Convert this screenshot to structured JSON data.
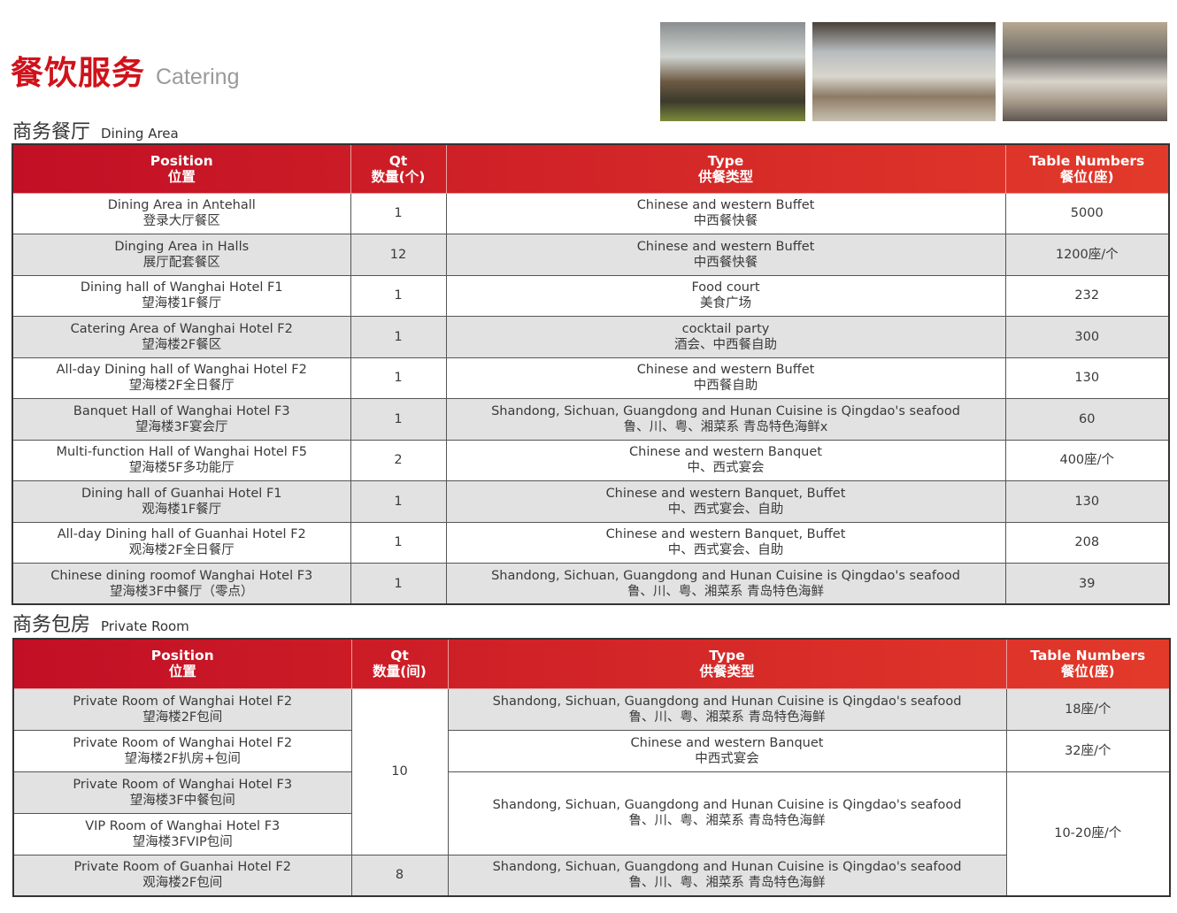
{
  "header": {
    "title_cn": "餐饮服务",
    "title_en": "Catering"
  },
  "photos": [
    "dining-photo",
    "hall-photo",
    "private-room-photo"
  ],
  "colors": {
    "accent": "#d0121b",
    "header_bg": "#c8102e",
    "row_alt": "#e2e2e2"
  },
  "dining": {
    "title_cn": "商务餐厅",
    "title_en": "Dining Area",
    "headers": [
      {
        "en": "Position",
        "cn": "位置"
      },
      {
        "en": "Qt",
        "cn": "数量(个)"
      },
      {
        "en": "Type",
        "cn": "供餐类型"
      },
      {
        "en": "Table Numbers",
        "cn": "餐位(座)"
      }
    ],
    "rows": [
      {
        "pos_en": "Dining Area in Antehall",
        "pos_cn": "登录大厅餐区",
        "qt": "1",
        "type_en": "Chinese and western Buffet",
        "type_cn": "中西餐快餐",
        "tables": "5000"
      },
      {
        "pos_en": "Dinging Area in Halls",
        "pos_cn": "展厅配套餐区",
        "qt": "12",
        "type_en": "Chinese and western Buffet",
        "type_cn": "中西餐快餐",
        "tables": "1200座/个"
      },
      {
        "pos_en": "Dining hall of Wanghai Hotel F1",
        "pos_cn": "望海楼1F餐厅",
        "qt": "1",
        "type_en": "Food court",
        "type_cn": "美食广场",
        "tables": "232"
      },
      {
        "pos_en": "Catering Area of Wanghai Hotel F2",
        "pos_cn": "望海楼2F餐区",
        "qt": "1",
        "type_en": "cocktail party",
        "type_cn": "酒会、中西餐自助",
        "tables": "300"
      },
      {
        "pos_en": "All-day Dining hall of Wanghai Hotel F2",
        "pos_cn": "望海楼2F全日餐厅",
        "qt": "1",
        "type_en": "Chinese and western Buffet",
        "type_cn": "中西餐自助",
        "tables": "130"
      },
      {
        "pos_en": "Banquet Hall of Wanghai Hotel  F3",
        "pos_cn": "望海楼3F宴会厅",
        "qt": "1",
        "type_en": "Shandong, Sichuan, Guangdong and Hunan Cuisine is Qingdao's seafood",
        "type_cn": "鲁、川、粤、湘菜系 青岛特色海鲜x",
        "tables": "60"
      },
      {
        "pos_en": "Multi-function Hall of Wanghai Hotel  F5",
        "pos_cn": "望海楼5F多功能厅",
        "qt": "2",
        "type_en": "Chinese and western Banquet",
        "type_cn": "中、西式宴会",
        "tables": "400座/个"
      },
      {
        "pos_en": "Dining hall of Guanhai Hotel  F1",
        "pos_cn": "观海楼1F餐厅",
        "qt": "1",
        "type_en": "Chinese and western Banquet, Buffet",
        "type_cn": "中、西式宴会、自助",
        "tables": "130"
      },
      {
        "pos_en": "All-day Dining hall of Guanhai Hotel F2",
        "pos_cn": "观海楼2F全日餐厅",
        "qt": "1",
        "type_en": "Chinese and western Banquet, Buffet",
        "type_cn": "中、西式宴会、自助",
        "tables": "208"
      },
      {
        "pos_en": "Chinese dining roomof Wanghai Hotel F3",
        "pos_cn": "望海楼3F中餐厅（零点）",
        "qt": "1",
        "type_en": "Shandong, Sichuan, Guangdong and Hunan Cuisine is Qingdao's seafood",
        "type_cn": "鲁、川、粤、湘菜系 青岛特色海鲜",
        "tables": "39"
      }
    ]
  },
  "private": {
    "title_cn": "商务包房",
    "title_en": "Private Room",
    "headers": [
      {
        "en": "Position",
        "cn": "位置"
      },
      {
        "en": "Qt",
        "cn": "数量(间)"
      },
      {
        "en": "Type",
        "cn": "供餐类型"
      },
      {
        "en": "Table Numbers",
        "cn": "餐位(座)"
      }
    ],
    "positions": [
      {
        "en": "Private Room of Wanghai Hotel F2",
        "cn": "望海楼2F包间"
      },
      {
        "en": "Private Room of Wanghai Hotel F2",
        "cn": "望海楼2F扒房+包间"
      },
      {
        "en": "Private Room of Wanghai Hotel F3",
        "cn": "望海楼3F中餐包间"
      },
      {
        "en": "VIP Room of Wanghai Hotel F3",
        "cn": "望海楼3FVIP包间"
      },
      {
        "en": "Private Room of Guanhai Hotel F2",
        "cn": "观海楼2F包间"
      }
    ],
    "qt": [
      "10",
      "8"
    ],
    "types": [
      {
        "en": "Shandong, Sichuan, Guangdong and Hunan Cuisine is Qingdao's seafood",
        "cn": "鲁、川、粤、湘菜系 青岛特色海鲜"
      },
      {
        "en": "Chinese and western Banquet",
        "cn": "中西式宴会"
      },
      {
        "en": "Shandong, Sichuan, Guangdong and Hunan Cuisine is Qingdao's seafood",
        "cn": "鲁、川、粤、湘菜系 青岛特色海鲜"
      },
      {
        "en": "Shandong, Sichuan, Guangdong and Hunan Cuisine is Qingdao's seafood",
        "cn": "鲁、川、粤、湘菜系 青岛特色海鲜"
      }
    ],
    "tables": [
      "18座/个",
      "32座/个",
      "10-20座/个"
    ]
  }
}
